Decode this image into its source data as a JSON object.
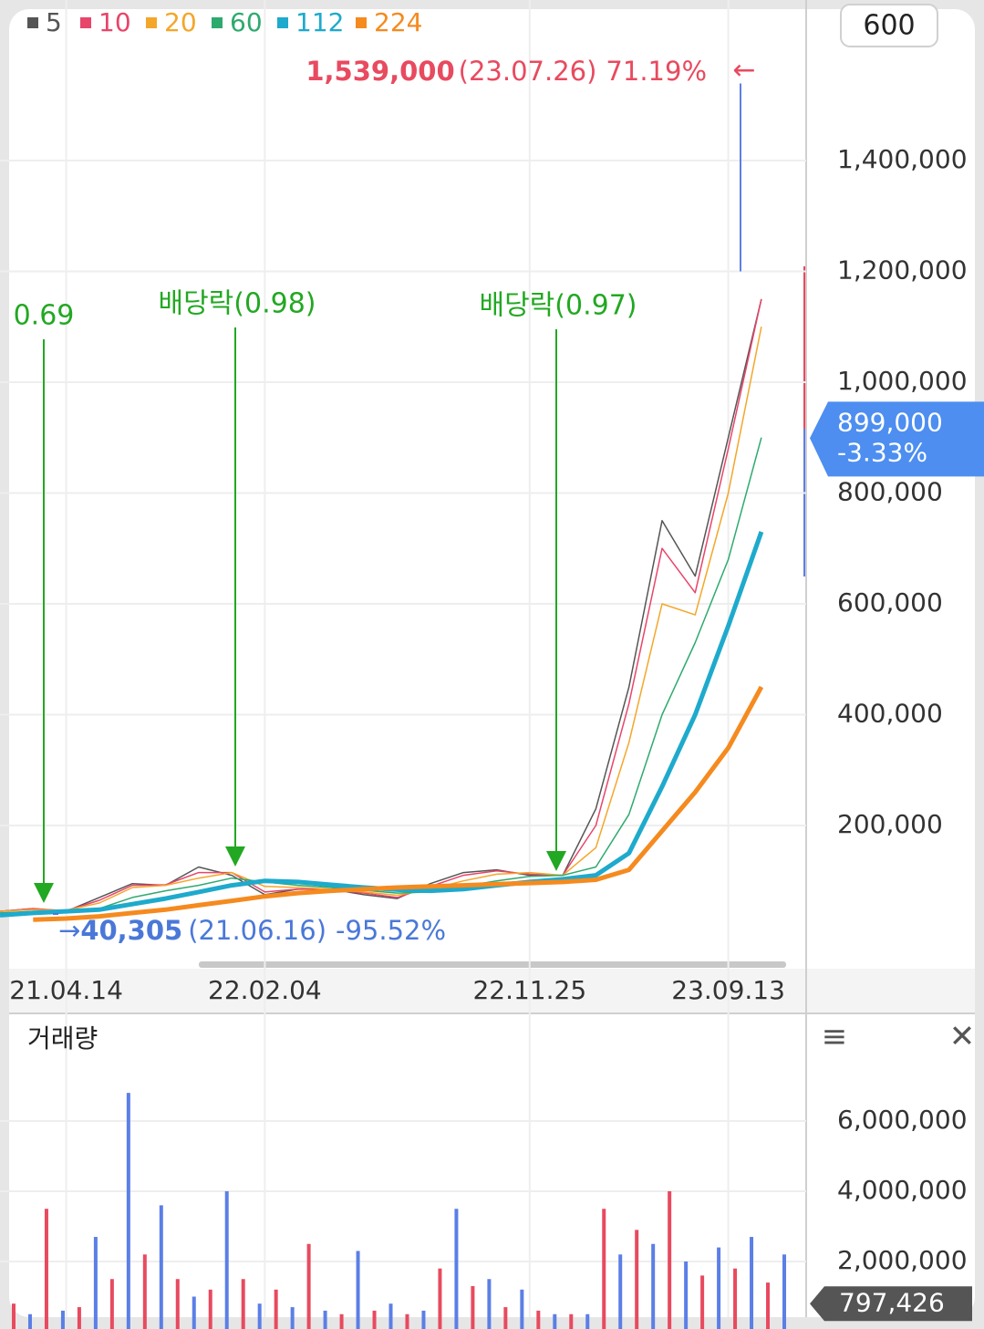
{
  "ui": {
    "period": "600",
    "menu": "≡",
    "close": "✕"
  },
  "chart_data": [
    {
      "type": "line",
      "categories": [
        null,
        null,
        "21.04.14",
        null,
        null,
        null,
        null,
        null,
        "22.02.04",
        null,
        null,
        null,
        null,
        null,
        null,
        null,
        "22.11.25",
        null,
        null,
        null,
        null,
        null,
        "23.09.13",
        null
      ],
      "series": [
        {
          "name": "5",
          "color": "#555555",
          "width": 1.5,
          "values": [
            45000,
            50000,
            45000,
            70000,
            95000,
            92000,
            125000,
            110000,
            75000,
            85000,
            85000,
            75000,
            68000,
            95000,
            115000,
            120000,
            110000,
            110000,
            230000,
            450000,
            750000,
            650000,
            900000,
            1150000
          ]
        },
        {
          "name": "10",
          "color": "#e8456a",
          "width": 1.5,
          "values": [
            45000,
            50000,
            46000,
            65000,
            92000,
            93000,
            115000,
            115000,
            80000,
            85000,
            84000,
            78000,
            70000,
            90000,
            110000,
            118000,
            112000,
            110000,
            200000,
            420000,
            700000,
            620000,
            880000,
            1150000
          ]
        },
        {
          "name": "20",
          "color": "#f4a62a",
          "width": 1.5,
          "values": [
            45000,
            48000,
            47000,
            60000,
            88000,
            92000,
            105000,
            115000,
            90000,
            88000,
            85000,
            80000,
            74000,
            85000,
            100000,
            112000,
            115000,
            110000,
            160000,
            350000,
            600000,
            580000,
            800000,
            1100000
          ]
        },
        {
          "name": "60",
          "color": "#2eaa6e",
          "width": 1.5,
          "values": [
            42000,
            45000,
            46000,
            50000,
            70000,
            82000,
            92000,
            105000,
            98000,
            92000,
            88000,
            83000,
            78000,
            80000,
            90000,
            100000,
            108000,
            110000,
            125000,
            220000,
            400000,
            530000,
            680000,
            900000
          ]
        },
        {
          "name": "112",
          "color": "#1eaacc",
          "width": 5,
          "values": [
            38000,
            42000,
            45000,
            48000,
            58000,
            68000,
            80000,
            92000,
            100000,
            98000,
            93000,
            88000,
            84000,
            82000,
            85000,
            92000,
            98000,
            103000,
            110000,
            150000,
            270000,
            400000,
            560000,
            730000
          ]
        },
        {
          "name": "224",
          "color": "#f58a1f",
          "width": 5,
          "values": [
            null,
            30000,
            32000,
            36000,
            42000,
            48000,
            56000,
            64000,
            72000,
            78000,
            82000,
            85000,
            88000,
            90000,
            92000,
            94000,
            96000,
            98000,
            102000,
            120000,
            190000,
            260000,
            340000,
            450000
          ]
        }
      ],
      "ylim": [
        -47000,
        1665000
      ],
      "yticks": [
        {
          "value": 200000,
          "label": "200,000"
        },
        {
          "value": 400000,
          "label": "400,000"
        },
        {
          "value": 600000,
          "label": "600,000"
        },
        {
          "value": 800000,
          "label": "800,000"
        },
        {
          "value": 1000000,
          "label": "1,000,000"
        },
        {
          "value": 1200000,
          "label": "1,200,000"
        },
        {
          "value": 1400000,
          "label": "1,400,000"
        }
      ],
      "grid": true,
      "high": {
        "value": 1539000,
        "label": "1,539,000",
        "date": "(23.07.26)",
        "change": "71.19%",
        "arrow": "←"
      },
      "low": {
        "value": 40305,
        "label": "40,305",
        "date": "(21.06.16)",
        "change": "-95.52%",
        "arrow": "→"
      },
      "last": {
        "value": 899000,
        "label": "899,000",
        "change": "-3.33%"
      },
      "events": [
        {
          "label": "0.69"
        },
        {
          "label": "배당락(0.98)"
        },
        {
          "label": "배당락(0.97)"
        }
      ]
    },
    {
      "type": "bar",
      "title": "거래량",
      "values": [
        800000,
        500000,
        3500000,
        600000,
        700000,
        2700000,
        1500000,
        6800000,
        2200000,
        3600000,
        1500000,
        1000000,
        1200000,
        4000000,
        1500000,
        800000,
        1200000,
        700000,
        2500000,
        600000,
        500000,
        2300000,
        600000,
        800000,
        500000,
        600000,
        1800000,
        3500000,
        1300000,
        1500000,
        700000,
        1200000,
        600000,
        500000,
        500000,
        500000,
        3500000,
        2200000,
        2900000,
        2500000,
        4000000,
        2000000,
        1600000,
        2400000,
        1800000,
        2700000,
        1400000,
        2200000
      ],
      "colors": [
        "#e84a5f",
        "#5b7fe6"
      ],
      "ylim": [
        0,
        8960000
      ],
      "yticks": [
        {
          "value": 2000000,
          "label": "2,000,000"
        },
        {
          "value": 4000000,
          "label": "4,000,000"
        },
        {
          "value": 6000000,
          "label": "6,000,000"
        }
      ],
      "grid": true,
      "last": {
        "value": 797426,
        "label": "797,426"
      }
    }
  ]
}
